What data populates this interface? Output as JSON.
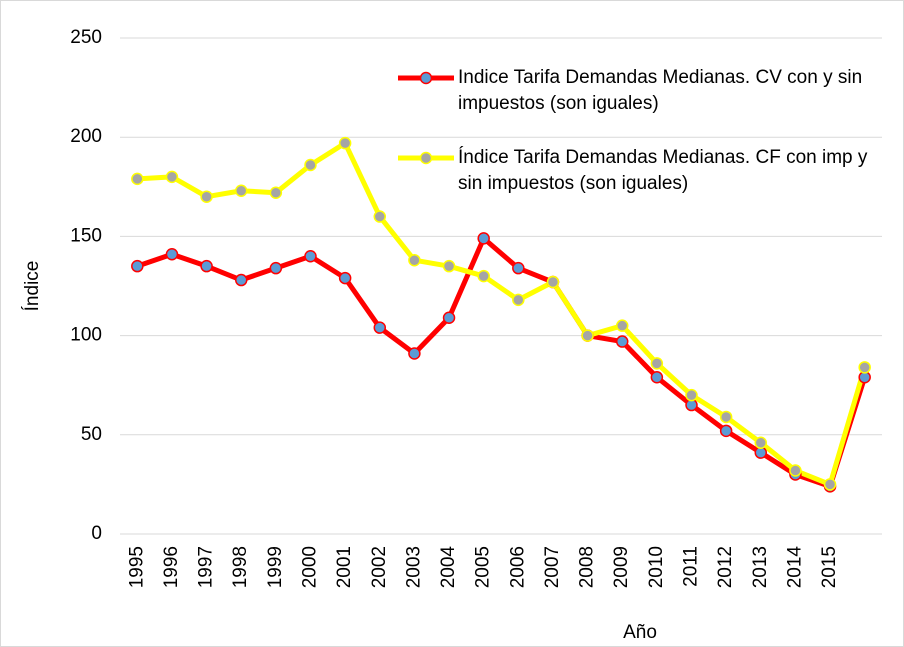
{
  "chart_data": {
    "type": "line",
    "x_label": "Año",
    "y_label": "Índice",
    "categories": [
      "1995",
      "1996",
      "1997",
      "1998",
      "1999",
      "2000",
      "2001",
      "2002",
      "2003",
      "2004",
      "2005",
      "2006",
      "2007",
      "2008",
      "2009",
      "2010",
      "2011",
      "2012",
      "2013",
      "2014",
      "2015",
      null
    ],
    "series": [
      {
        "name": "Indice Tarifa Demandas Medianas. CV con y sin impuestos (son iguales)",
        "color": "#ff0000",
        "marker_color": "#5b9bd5",
        "values": [
          135,
          141,
          135,
          128,
          134,
          140,
          129,
          104,
          91,
          109,
          149,
          134,
          127,
          100,
          97,
          79,
          65,
          52,
          41,
          30,
          24,
          79
        ]
      },
      {
        "name": "Índice Tarifa Demandas Medianas. CF con imp y sin impuestos (son iguales)",
        "color": "#ffff00",
        "marker_color": "#a5a5a5",
        "values": [
          179,
          180,
          170,
          173,
          172,
          186,
          197,
          160,
          138,
          135,
          130,
          118,
          127,
          100,
          105,
          86,
          70,
          59,
          46,
          32,
          25,
          84
        ]
      }
    ],
    "ylim": [
      0,
      250
    ],
    "yticks": [
      0,
      50,
      100,
      150,
      200,
      250
    ],
    "grid": true,
    "legend": "top-right"
  }
}
